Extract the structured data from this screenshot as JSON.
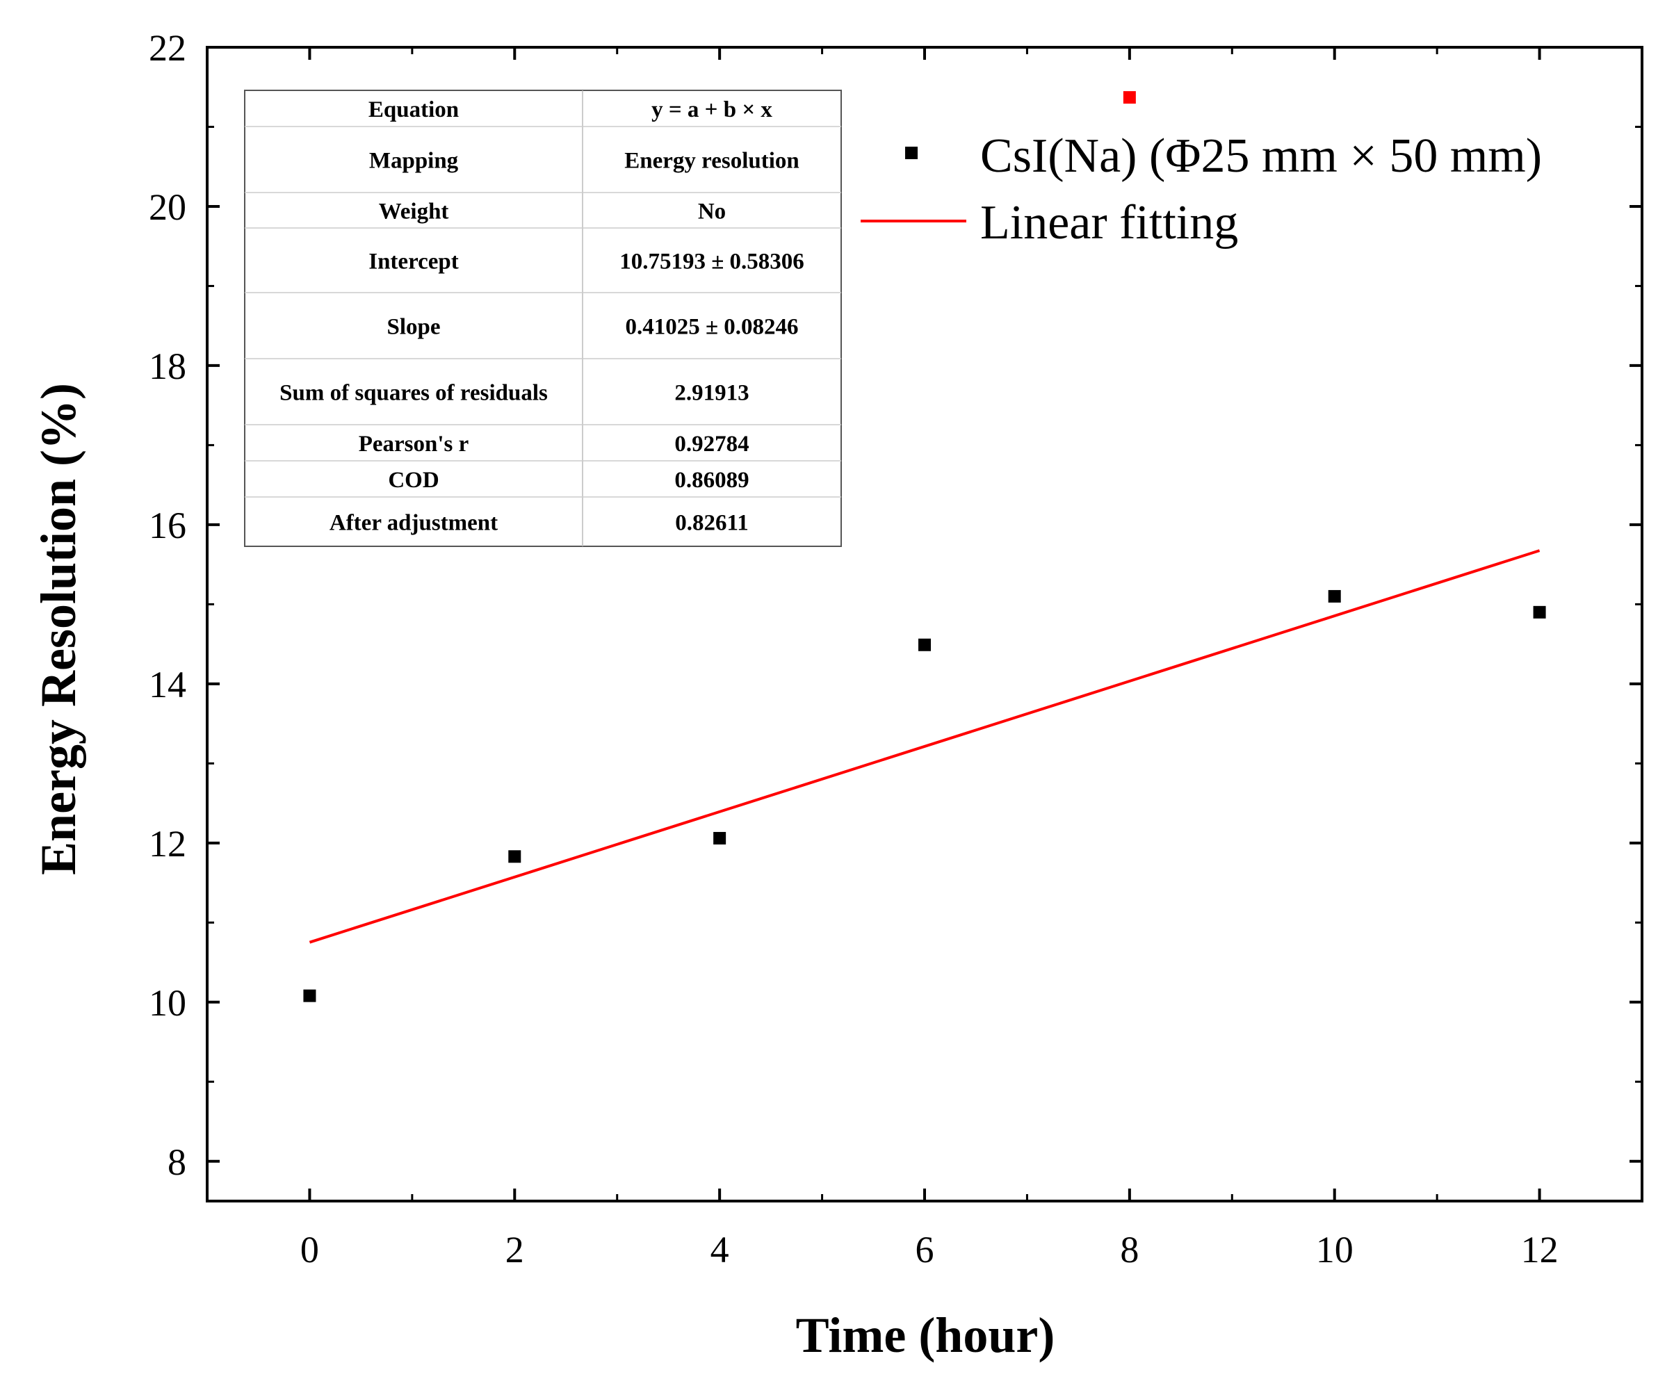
{
  "chart_data": {
    "type": "scatter",
    "title": "",
    "xlabel": "Time (hour)",
    "ylabel": "Energy Resolution (%)",
    "xlim": [
      -1,
      13
    ],
    "ylim": [
      7.5,
      22
    ],
    "x_ticks": [
      "0",
      "2",
      "4",
      "6",
      "8",
      "10",
      "12"
    ],
    "y_ticks": [
      "8",
      "10",
      "12",
      "14",
      "16",
      "18",
      "20",
      "22"
    ],
    "series": [
      {
        "name": "CsI(Na) (Φ25 mm × 50 mm)",
        "kind": "scatter",
        "color": "#000000",
        "points": [
          {
            "x": 0,
            "y": 10.08
          },
          {
            "x": 2,
            "y": 11.83
          },
          {
            "x": 4,
            "y": 12.06
          },
          {
            "x": 6,
            "y": 14.49
          },
          {
            "x": 8,
            "y": 21.37,
            "color": "#ff0000"
          },
          {
            "x": 10,
            "y": 15.1
          },
          {
            "x": 12,
            "y": 14.9
          }
        ]
      },
      {
        "name": "Linear fitting",
        "kind": "line",
        "color": "#ff0000",
        "intercept": 10.75193,
        "slope": 0.41025,
        "x_range": [
          0,
          12
        ]
      }
    ],
    "legend_position": "top-right",
    "fit_table": [
      {
        "label": "Equation",
        "value": "y = a + b × x"
      },
      {
        "label": "Mapping",
        "value": "Energy resolution"
      },
      {
        "label": "Weight",
        "value": "No"
      },
      {
        "label": "Intercept",
        "value": "10.75193 ± 0.58306"
      },
      {
        "label": "Slope",
        "value": "0.41025 ± 0.08246"
      },
      {
        "label": "Sum of squares of residuals",
        "value": "2.91913"
      },
      {
        "label": "Pearson's r",
        "value": "0.92784"
      },
      {
        "label": "COD",
        "value": "0.86089"
      },
      {
        "label": "After adjustment",
        "value": "0.82611"
      }
    ]
  }
}
